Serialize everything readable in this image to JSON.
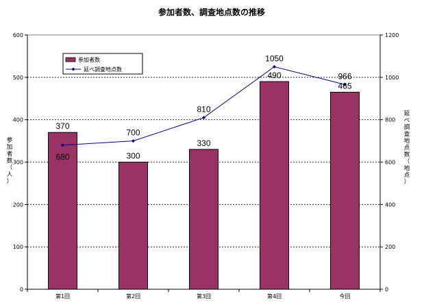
{
  "chart_data": {
    "type": "bar",
    "title": "参加者数、調査地点数の推移",
    "categories": [
      "第1回",
      "第2回",
      "第3回",
      "第4回",
      "今回"
    ],
    "series": [
      {
        "name": "参加者数",
        "type": "bar",
        "axis": "left",
        "values": [
          370,
          300,
          330,
          490,
          465
        ],
        "color": "#993366"
      },
      {
        "name": "延べ調査地点数",
        "type": "line",
        "axis": "right",
        "values": [
          680,
          700,
          810,
          1050,
          966
        ],
        "color": "#000080"
      }
    ],
    "ylabel": "参加者数（人）",
    "y2label": "延べ調査地点数（地点）",
    "ylim": [
      0,
      600
    ],
    "y2lim": [
      0,
      1200
    ],
    "yticks": [
      "0",
      "100",
      "200",
      "300",
      "400",
      "500",
      "600"
    ],
    "y2ticks": [
      "0",
      "200",
      "400",
      "600",
      "800",
      "1000",
      "1200"
    ],
    "grid": true,
    "legend": "top-left"
  }
}
